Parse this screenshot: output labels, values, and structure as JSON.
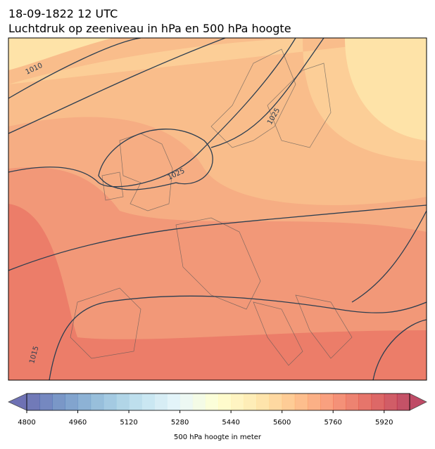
{
  "header": {
    "line1": "18-09-1822 12 UTC",
    "line2": "Luchtdruk op zeeniveau in hPa en 500 hPa hoogte"
  },
  "contour_labels": [
    "1010",
    "1025",
    "1025",
    "1015"
  ],
  "colorbar": {
    "label": "500 hPa hoogte in meter",
    "range": [
      4800,
      6000
    ],
    "step": 40,
    "ticks": [
      4800,
      4960,
      5120,
      5280,
      5440,
      5600,
      5760,
      5920
    ]
  }
}
